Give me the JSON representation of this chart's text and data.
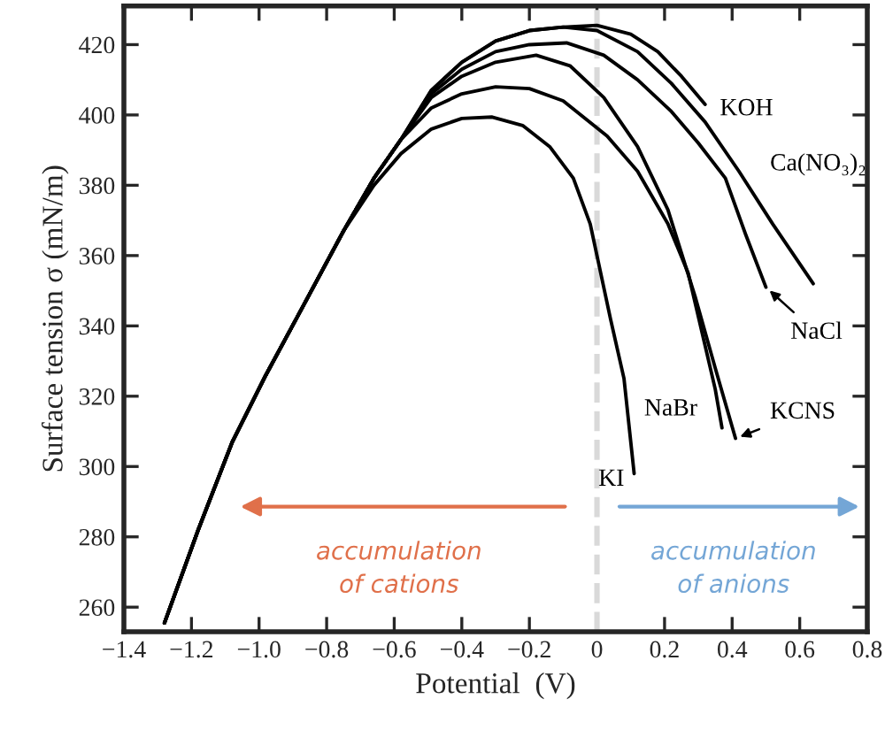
{
  "chart_data": {
    "type": "line",
    "xlabel": "Potential  (V)",
    "ylabel": "Surface tension σ (mN/m)",
    "xlim": [
      -1.4,
      0.8
    ],
    "ylim": [
      253,
      431
    ],
    "xticks": [
      {
        "value": -1.4,
        "label": "−1.4"
      },
      {
        "value": -1.2,
        "label": "−1.2"
      },
      {
        "value": -1.0,
        "label": "−1.0"
      },
      {
        "value": -0.8,
        "label": "−0.8"
      },
      {
        "value": -0.6,
        "label": "−0.6"
      },
      {
        "value": -0.4,
        "label": "−0.4"
      },
      {
        "value": -0.2,
        "label": "−0.2"
      },
      0,
      0.2,
      0.4,
      0.6,
      0.8
    ],
    "yticks": [
      260,
      280,
      300,
      320,
      340,
      360,
      380,
      400,
      420
    ],
    "grid": false,
    "legend": false,
    "marker": "none",
    "line_style": "solid",
    "ref_lines": [
      {
        "axis": "x",
        "value": 0,
        "color": "#d9d9d9",
        "line_style": "dashed"
      }
    ],
    "annotations": [
      "accumulation\nof cations",
      "accumulation\nof anions"
    ],
    "series": [
      {
        "name": "KOH",
        "color": "#000000",
        "x": [
          -1.28,
          -1.18,
          -1.08,
          -0.98,
          -0.89,
          -0.75,
          -0.66,
          -0.58,
          -0.49,
          -0.4,
          -0.3,
          -0.2,
          -0.1,
          0.0,
          0.1,
          0.18,
          0.25,
          0.32
        ],
        "values": [
          255.5,
          282,
          306.8,
          326,
          342,
          367,
          382,
          393,
          407,
          415,
          421,
          424,
          425,
          425.5,
          423,
          418,
          411,
          403
        ]
      },
      {
        "name": "Ca(NO₃)₂",
        "color": "#000000",
        "x": [
          -1.28,
          -1.18,
          -1.08,
          -0.98,
          -0.89,
          -0.75,
          -0.66,
          -0.58,
          -0.49,
          -0.4,
          -0.3,
          -0.2,
          -0.1,
          0.0,
          0.12,
          0.22,
          0.32,
          0.42,
          0.52,
          0.64
        ],
        "values": [
          255.5,
          282,
          306.8,
          326,
          342,
          367,
          382,
          393,
          407,
          415,
          421,
          424,
          425,
          424,
          418,
          409,
          398,
          384,
          369,
          352
        ]
      },
      {
        "name": "NaCl",
        "color": "#000000",
        "x": [
          -1.28,
          -1.18,
          -1.08,
          -0.98,
          -0.89,
          -0.75,
          -0.66,
          -0.58,
          -0.49,
          -0.4,
          -0.3,
          -0.2,
          -0.09,
          0.02,
          0.12,
          0.22,
          0.3,
          0.38,
          0.44,
          0.5
        ],
        "values": [
          255.5,
          282,
          306.8,
          326,
          342,
          367,
          382,
          393,
          406,
          413,
          418,
          420,
          420.5,
          417,
          410,
          401,
          392,
          382,
          366,
          351
        ]
      },
      {
        "name": "KCNS",
        "color": "#000000",
        "x": [
          -1.28,
          -1.18,
          -1.08,
          -0.98,
          -0.89,
          -0.75,
          -0.66,
          -0.58,
          -0.49,
          -0.4,
          -0.3,
          -0.18,
          -0.08,
          0.02,
          0.12,
          0.21,
          0.29,
          0.35,
          0.41
        ],
        "values": [
          255.5,
          282,
          306.8,
          326,
          342,
          367,
          382,
          393,
          405,
          411,
          415,
          417,
          414,
          405,
          391,
          373,
          348.5,
          328,
          308
        ]
      },
      {
        "name": "NaBr",
        "color": "#000000",
        "x": [
          -1.28,
          -1.18,
          -1.08,
          -0.98,
          -0.89,
          -0.75,
          -0.66,
          -0.58,
          -0.49,
          -0.4,
          -0.3,
          -0.2,
          -0.1,
          0.03,
          0.12,
          0.21,
          0.27,
          0.31,
          0.35,
          0.37
        ],
        "values": [
          255.5,
          282,
          306.8,
          326,
          342,
          367,
          382,
          393,
          402,
          406,
          408,
          407.5,
          404,
          394,
          384,
          369,
          355,
          338.5,
          322,
          311
        ]
      },
      {
        "name": "KI",
        "color": "#000000",
        "x": [
          -1.28,
          -1.18,
          -1.08,
          -0.98,
          -0.89,
          -0.75,
          -0.66,
          -0.58,
          -0.49,
          -0.4,
          -0.31,
          -0.22,
          -0.14,
          -0.07,
          -0.02,
          0.04,
          0.08,
          0.11
        ],
        "values": [
          255.5,
          282,
          306.8,
          326,
          342,
          367,
          380,
          389,
          396,
          399,
          399.4,
          397,
          391,
          382,
          369,
          342,
          325,
          298
        ]
      }
    ]
  }
}
